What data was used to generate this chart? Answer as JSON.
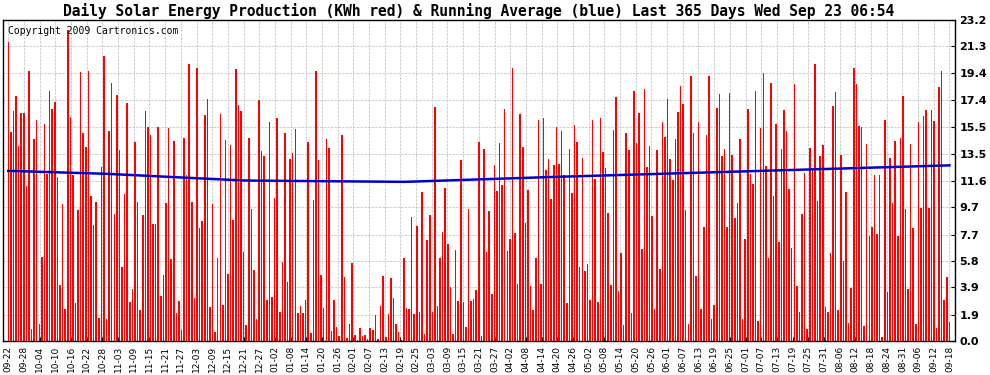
{
  "title": "Daily Solar Energy Production (KWh red) & Running Average (blue) Last 365 Days Wed Sep 23 06:54",
  "copyright": "Copyright 2009 Cartronics.com",
  "yticks": [
    0.0,
    1.9,
    3.9,
    5.8,
    7.7,
    9.7,
    11.6,
    13.5,
    15.5,
    17.4,
    19.4,
    21.3,
    23.2
  ],
  "ymax": 23.2,
  "bar_color": "#ff0000",
  "avg_color": "#0000cc",
  "bg_color": "#ffffff",
  "grid_color": "#bbbbbb",
  "title_fontsize": 10.5,
  "copyright_fontsize": 7,
  "avg_linewidth": 1.8,
  "xtick_labels": [
    "09-22",
    "09-28",
    "10-04",
    "10-10",
    "10-16",
    "10-22",
    "10-28",
    "11-03",
    "11-09",
    "11-15",
    "11-21",
    "11-27",
    "12-03",
    "12-09",
    "12-15",
    "12-21",
    "12-27",
    "01-02",
    "01-08",
    "01-14",
    "01-20",
    "01-26",
    "02-01",
    "02-07",
    "02-13",
    "02-19",
    "02-25",
    "03-03",
    "03-09",
    "03-15",
    "03-21",
    "03-27",
    "04-02",
    "04-08",
    "04-14",
    "04-20",
    "04-26",
    "05-02",
    "05-08",
    "05-14",
    "05-20",
    "05-26",
    "06-01",
    "06-07",
    "06-13",
    "06-19",
    "06-25",
    "07-01",
    "07-07",
    "07-13",
    "07-19",
    "07-25",
    "07-31",
    "08-06",
    "08-12",
    "08-18",
    "08-24",
    "08-31",
    "09-06",
    "09-12",
    "09-18"
  ]
}
